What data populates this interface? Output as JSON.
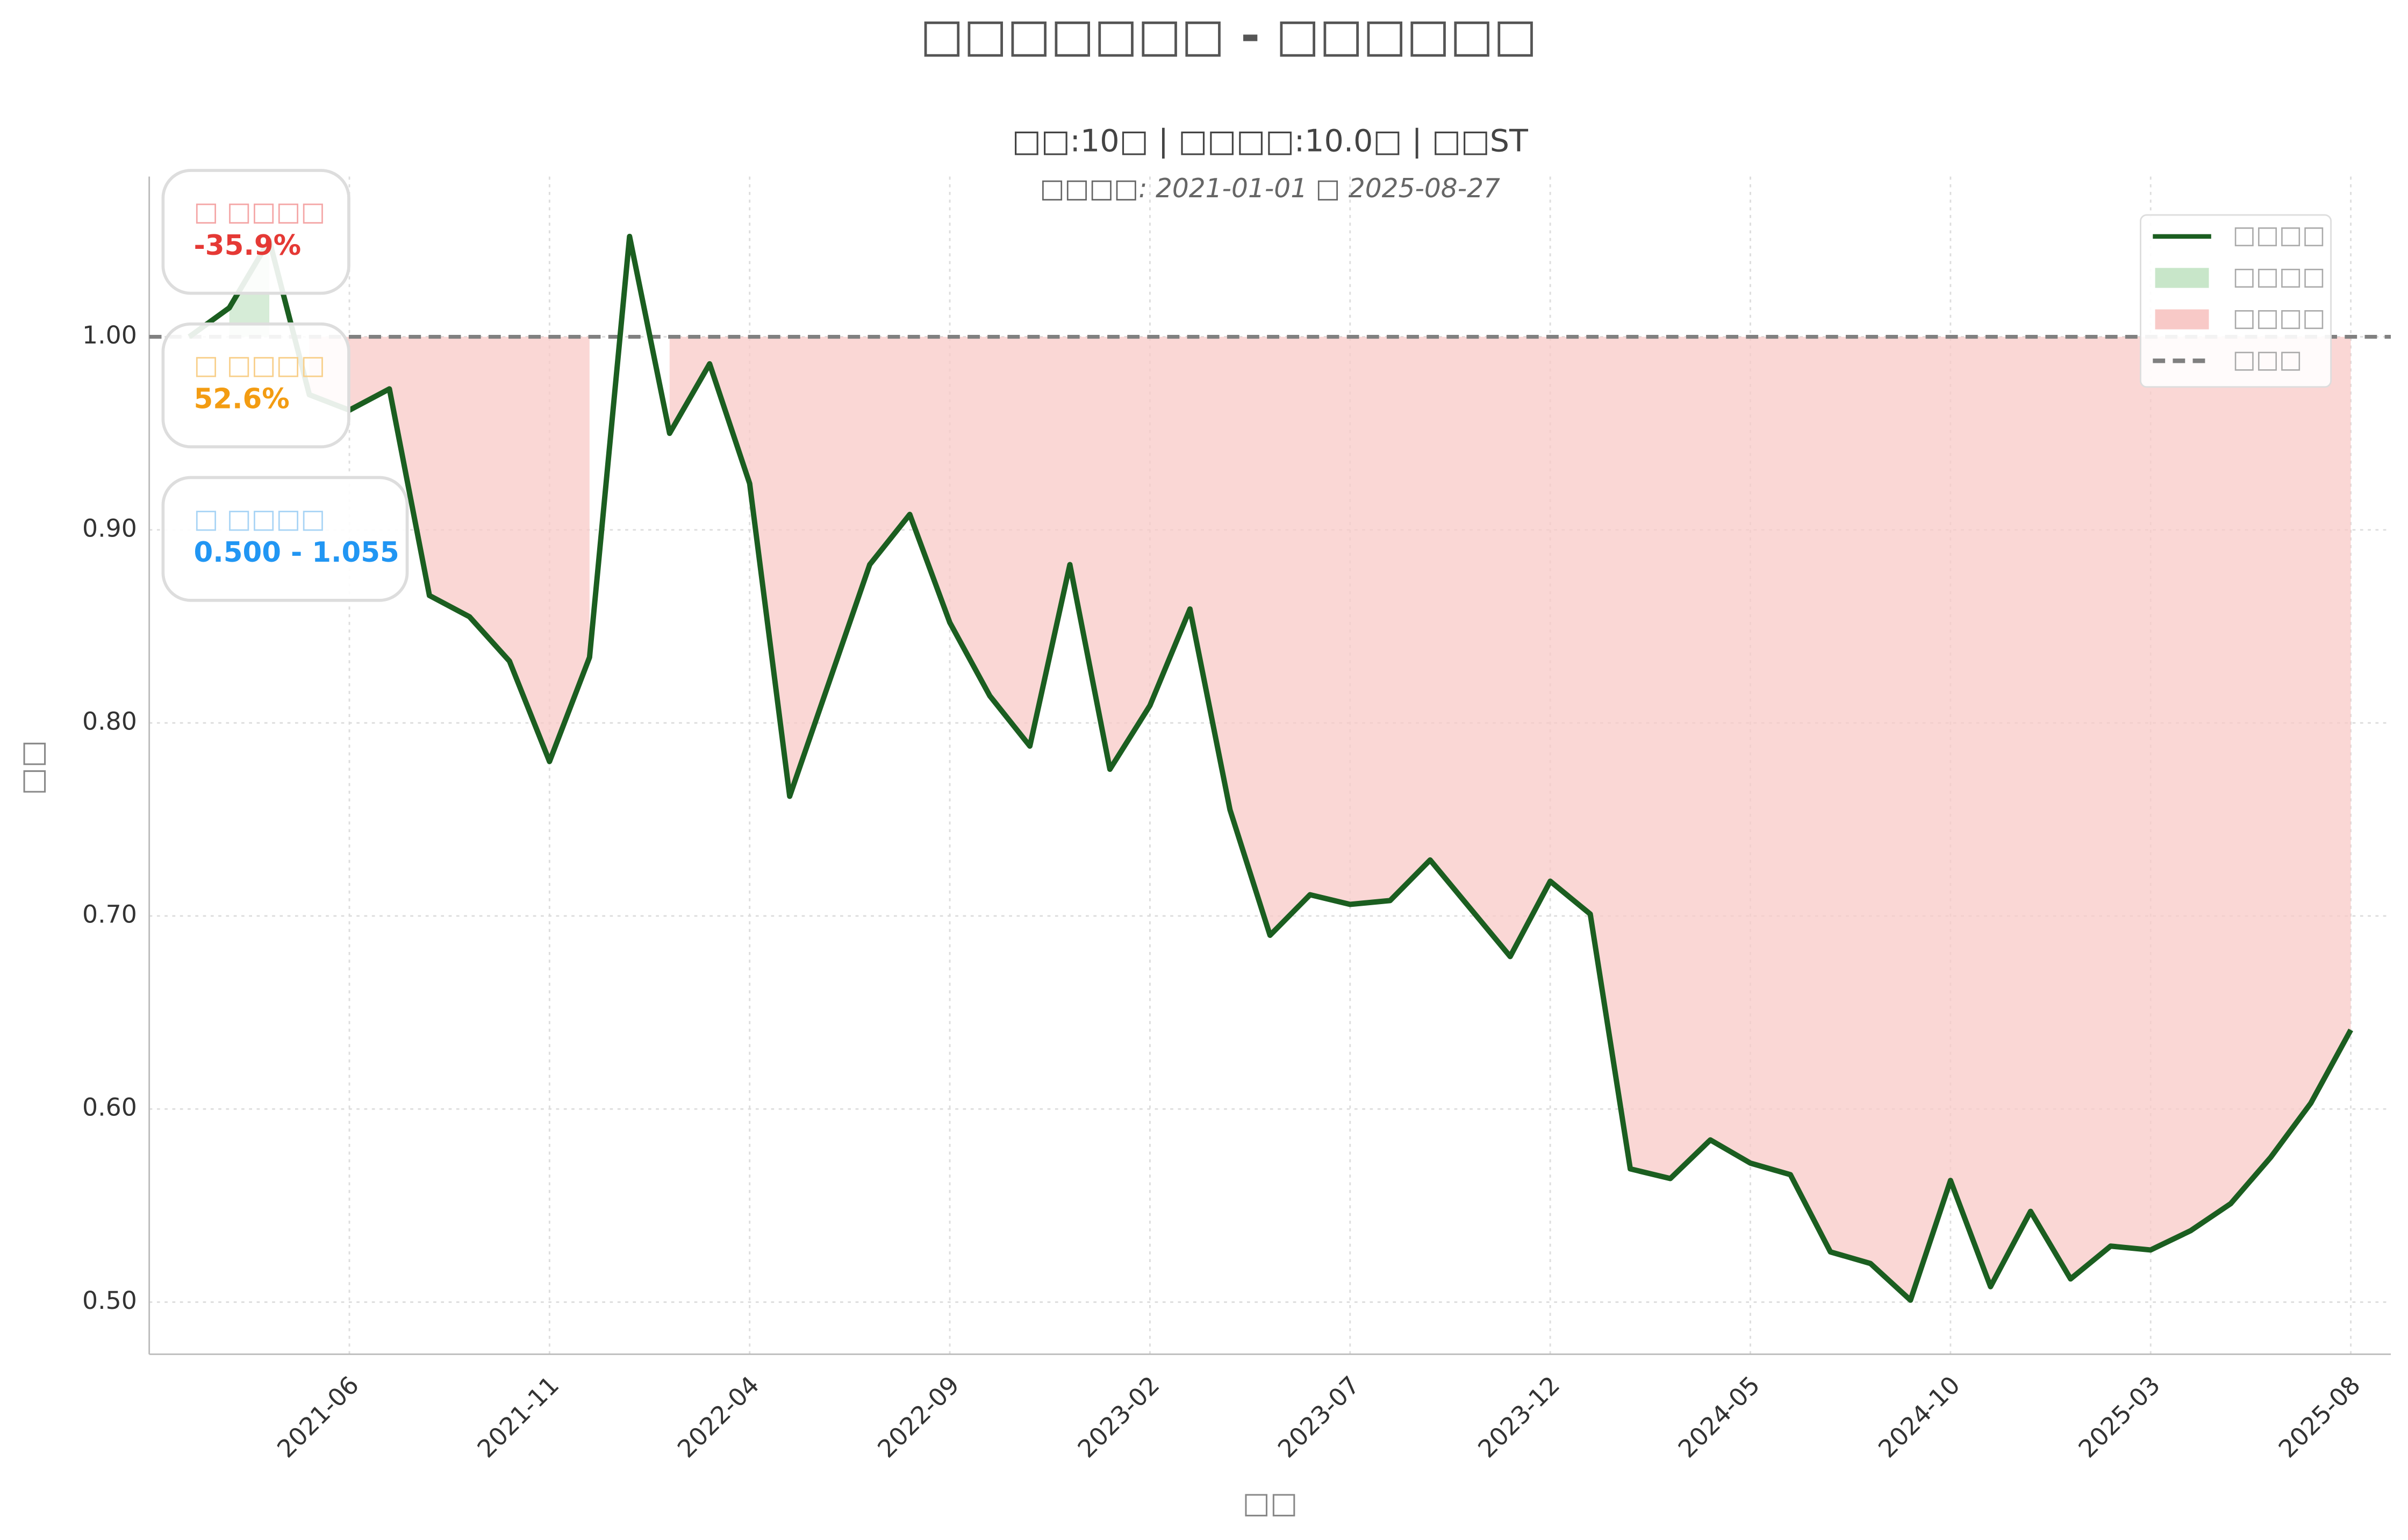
{
  "chart_data": {
    "type": "line",
    "title": "□□□□□□□ - □□□□□□",
    "subtitle": "□□:10□ | □□□□:10.0□ | □□ST",
    "subtitle2": "□□□□: 2021-01-01 □ 2025-08-27",
    "xlabel": "□□",
    "ylabel": "□□",
    "x": [
      "2021-02",
      "2021-03",
      "2021-04",
      "2021-05",
      "2021-06",
      "2021-07",
      "2021-08",
      "2021-09",
      "2021-10",
      "2021-11",
      "2021-12",
      "2022-01",
      "2022-02",
      "2022-03",
      "2022-04",
      "2022-05",
      "2022-06",
      "2022-07",
      "2022-08",
      "2022-09",
      "2022-10",
      "2022-11",
      "2022-12",
      "2023-01",
      "2023-02",
      "2023-03",
      "2023-04",
      "2023-05",
      "2023-06",
      "2023-07",
      "2023-08",
      "2023-09",
      "2023-10",
      "2023-11",
      "2023-12",
      "2024-01",
      "2024-02",
      "2024-03",
      "2024-04",
      "2024-05",
      "2024-06",
      "2024-07",
      "2024-08",
      "2024-09",
      "2024-10",
      "2024-11",
      "2024-12",
      "2025-01",
      "2025-02",
      "2025-03",
      "2025-04",
      "2025-05",
      "2025-06",
      "2025-07",
      "2025-08"
    ],
    "series": [
      {
        "name": "□□□□",
        "color": "#1b5e20",
        "values": [
          1.0,
          1.015,
          1.05,
          0.97,
          0.962,
          0.973,
          0.866,
          0.855,
          0.832,
          0.78,
          0.834,
          1.052,
          0.95,
          0.986,
          0.924,
          0.762,
          0.822,
          0.882,
          0.908,
          0.852,
          0.814,
          0.788,
          0.882,
          0.776,
          0.809,
          0.859,
          0.755,
          0.69,
          0.711,
          0.706,
          0.708,
          0.729,
          0.704,
          0.679,
          0.718,
          0.701,
          0.569,
          0.564,
          0.584,
          0.572,
          0.566,
          0.526,
          0.52,
          0.501,
          0.563,
          0.508,
          0.547,
          0.512,
          0.529,
          0.527,
          0.537,
          0.551,
          0.575,
          0.603,
          0.641
        ]
      }
    ],
    "fill_above": {
      "name": "□□□□",
      "color": "#c8e6c9"
    },
    "fill_below": {
      "name": "□□□□",
      "color": "#f8c9c7"
    },
    "baseline": {
      "name": "□□□",
      "value": 1.0,
      "color": "#808080"
    },
    "xlim": [
      "2021-01",
      "2025-09"
    ],
    "xticks": [
      "2021-06",
      "2021-11",
      "2022-04",
      "2022-09",
      "2023-02",
      "2023-07",
      "2023-12",
      "2024-05",
      "2024-10",
      "2025-03",
      "2025-08"
    ],
    "ylim": [
      0.473,
      1.083
    ],
    "yticks": [
      {
        "value": 0.5,
        "label": "0.50"
      },
      {
        "value": 0.6,
        "label": "0.60"
      },
      {
        "value": 0.7,
        "label": "0.70"
      },
      {
        "value": 0.8,
        "label": "0.80"
      },
      {
        "value": 0.9,
        "label": "0.90"
      },
      {
        "value": 1.0,
        "label": "1.00"
      }
    ],
    "grid": true,
    "legend": "upper right",
    "annotations": [
      {
        "title": "□ □□□□",
        "text": "-35.9%",
        "title_color": "#f4a6a6",
        "color": "#e53935"
      },
      {
        "title": "□ □□□□",
        "text": "52.6%",
        "title_color": "#f8cf8a",
        "color": "#f39c12"
      },
      {
        "title": "□ □□□□",
        "text": "0.500 - 1.055",
        "title_color": "#a8d4f5",
        "color": "#2196f3"
      }
    ]
  }
}
